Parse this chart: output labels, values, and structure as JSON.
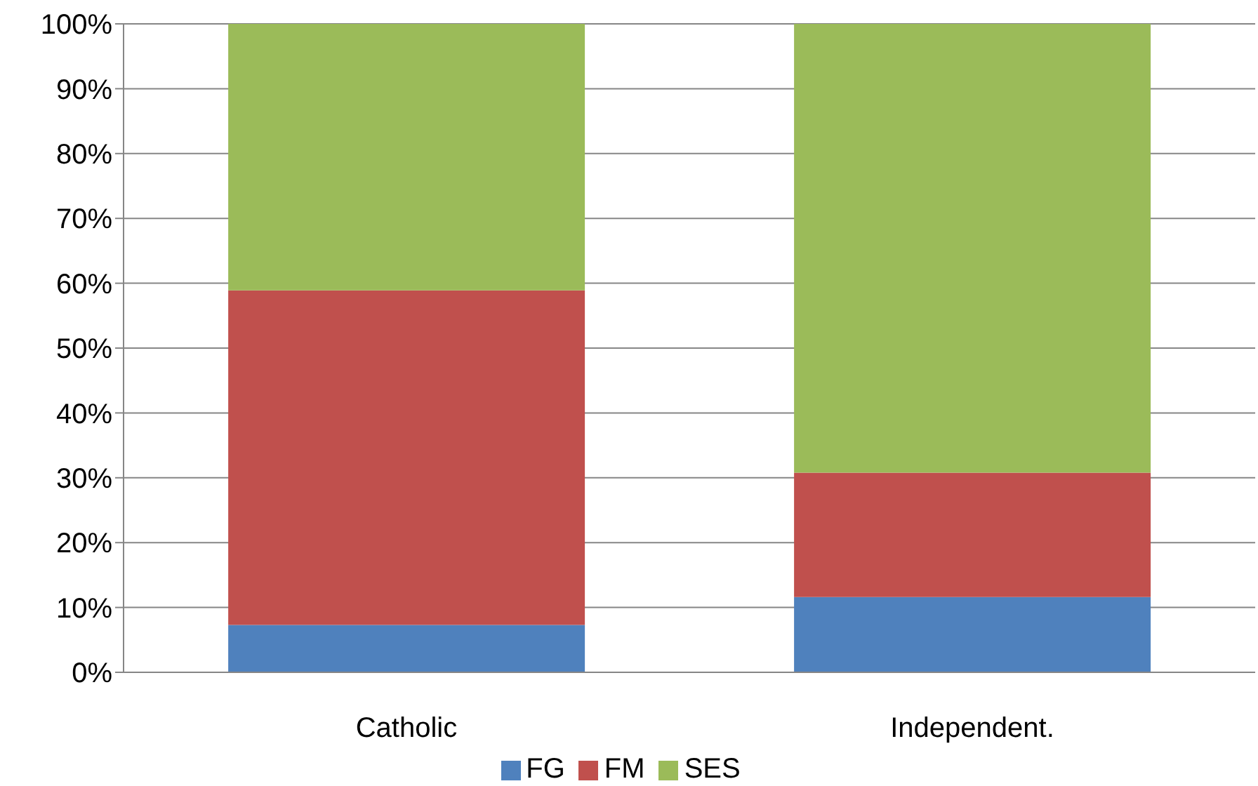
{
  "chart_data": {
    "type": "bar",
    "stacked": true,
    "categories": [
      "Catholic",
      "Independent."
    ],
    "series": [
      {
        "name": "FG",
        "color": "#4f81bd",
        "values": [
          7.3,
          11.6
        ]
      },
      {
        "name": "FM",
        "color": "#c0504d",
        "values": [
          51.6,
          19.2
        ]
      },
      {
        "name": "SES",
        "color": "#9bbb59",
        "values": [
          41.1,
          69.2
        ]
      }
    ],
    "ylim": [
      0,
      100
    ],
    "yticks": [
      {
        "value": 0,
        "label": "0%"
      },
      {
        "value": 10,
        "label": "10%"
      },
      {
        "value": 20,
        "label": "20%"
      },
      {
        "value": 30,
        "label": "30%"
      },
      {
        "value": 40,
        "label": "40%"
      },
      {
        "value": 50,
        "label": "50%"
      },
      {
        "value": 60,
        "label": "60%"
      },
      {
        "value": 70,
        "label": "70%"
      },
      {
        "value": 80,
        "label": "80%"
      },
      {
        "value": 90,
        "label": "90%"
      },
      {
        "value": 100,
        "label": "100%"
      }
    ],
    "grid": "y",
    "legend": "bottom"
  }
}
